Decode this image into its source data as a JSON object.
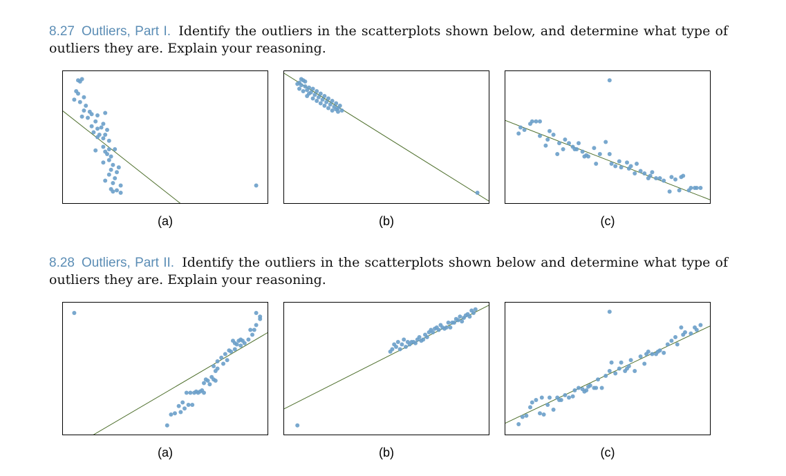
{
  "problems": [
    {
      "number": "8.27",
      "title": "Outliers, Part I.",
      "text": "Identify the outliers in the scatterplots shown below, and determine what type of outliers they are. Explain your reasoning."
    },
    {
      "number": "8.28",
      "title": "Outliers, Part II.",
      "text": "Identify the outliers in the scatterplots shown below and determine what type of outliers they are. Explain your reasoning."
    }
  ],
  "colors": {
    "point": "#6a9ec9",
    "line": "#4e6f2c",
    "accent": "#5b8db5"
  },
  "chart_data": [
    {
      "type": "scatter",
      "caption": "(a)",
      "xlim": [
        0,
        100
      ],
      "ylim": [
        0,
        100
      ],
      "points": [
        [
          5,
          97
        ],
        [
          6,
          96
        ],
        [
          7,
          98
        ],
        [
          4,
          88
        ],
        [
          5,
          86
        ],
        [
          8,
          83
        ],
        [
          3,
          81
        ],
        [
          6,
          79
        ],
        [
          9,
          76
        ],
        [
          8,
          72
        ],
        [
          11,
          71
        ],
        [
          12,
          69
        ],
        [
          15,
          68
        ],
        [
          19,
          70
        ],
        [
          7,
          67
        ],
        [
          10,
          66
        ],
        [
          14,
          63
        ],
        [
          18,
          61
        ],
        [
          12,
          59
        ],
        [
          15,
          57
        ],
        [
          17,
          58
        ],
        [
          20,
          56
        ],
        [
          13,
          54
        ],
        [
          16,
          52
        ],
        [
          19,
          52
        ],
        [
          15,
          50
        ],
        [
          18,
          49
        ],
        [
          21,
          47
        ],
        [
          18,
          42
        ],
        [
          21,
          40
        ],
        [
          14,
          39
        ],
        [
          19,
          38
        ],
        [
          24,
          40
        ],
        [
          20,
          36
        ],
        [
          22,
          34
        ],
        [
          21,
          31
        ],
        [
          18,
          29
        ],
        [
          23,
          27
        ],
        [
          26,
          25
        ],
        [
          22,
          23
        ],
        [
          25,
          21
        ],
        [
          21,
          19
        ],
        [
          24,
          16
        ],
        [
          19,
          14
        ],
        [
          23,
          12
        ],
        [
          27,
          10
        ],
        [
          22,
          7
        ],
        [
          25,
          6
        ],
        [
          23,
          5
        ],
        [
          27,
          4
        ],
        [
          97,
          10
        ]
      ],
      "line": [
        [
          0,
          68
        ],
        [
          54,
          0
        ]
      ]
    },
    {
      "type": "scatter",
      "caption": "(b)",
      "xlim": [
        0,
        100
      ],
      "ylim": [
        0,
        100
      ],
      "points": [
        [
          6,
          98
        ],
        [
          7,
          97
        ],
        [
          5,
          95
        ],
        [
          8,
          96
        ],
        [
          4,
          94
        ],
        [
          6,
          93
        ],
        [
          8,
          92
        ],
        [
          10,
          91
        ],
        [
          5,
          90
        ],
        [
          9,
          89
        ],
        [
          12,
          90
        ],
        [
          7,
          88
        ],
        [
          11,
          87
        ],
        [
          14,
          88
        ],
        [
          10,
          86
        ],
        [
          13,
          85
        ],
        [
          16,
          86
        ],
        [
          9,
          84
        ],
        [
          15,
          83
        ],
        [
          18,
          84
        ],
        [
          12,
          82
        ],
        [
          17,
          81
        ],
        [
          20,
          82
        ],
        [
          14,
          80
        ],
        [
          19,
          79
        ],
        [
          22,
          80
        ],
        [
          16,
          78
        ],
        [
          21,
          77
        ],
        [
          24,
          78
        ],
        [
          18,
          76
        ],
        [
          23,
          75
        ],
        [
          20,
          74
        ],
        [
          25,
          74
        ],
        [
          26,
          76
        ],
        [
          22,
          72
        ],
        [
          24,
          73
        ],
        [
          27,
          72
        ],
        [
          25,
          71
        ],
        [
          97,
          4
        ]
      ],
      "line": [
        [
          0,
          100
        ],
        [
          100,
          0
        ]
      ]
    },
    {
      "type": "scatter",
      "caption": "(c)",
      "xlim": [
        0,
        100
      ],
      "ylim": [
        0,
        100
      ],
      "points": [
        [
          51,
          97
        ],
        [
          4,
          53
        ],
        [
          5,
          58
        ],
        [
          7,
          56
        ],
        [
          10,
          61
        ],
        [
          11,
          63
        ],
        [
          13,
          63
        ],
        [
          15,
          51
        ],
        [
          15,
          63
        ],
        [
          18,
          43
        ],
        [
          19,
          48
        ],
        [
          20,
          55
        ],
        [
          22,
          52
        ],
        [
          24,
          36
        ],
        [
          25,
          45
        ],
        [
          28,
          48
        ],
        [
          27,
          40
        ],
        [
          30,
          45
        ],
        [
          32,
          42
        ],
        [
          33,
          40
        ],
        [
          34,
          40
        ],
        [
          35,
          45
        ],
        [
          37,
          38
        ],
        [
          38,
          34
        ],
        [
          39,
          35
        ],
        [
          40,
          34
        ],
        [
          43,
          41
        ],
        [
          44,
          28
        ],
        [
          46,
          36
        ],
        [
          49,
          46
        ],
        [
          51,
          36
        ],
        [
          52,
          28
        ],
        [
          54,
          26
        ],
        [
          56,
          30
        ],
        [
          57,
          25
        ],
        [
          60,
          29
        ],
        [
          61,
          24
        ],
        [
          62,
          26
        ],
        [
          64,
          20
        ],
        [
          65,
          28
        ],
        [
          67,
          22
        ],
        [
          69,
          20
        ],
        [
          71,
          16
        ],
        [
          72,
          18
        ],
        [
          73,
          21
        ],
        [
          75,
          16
        ],
        [
          77,
          16
        ],
        [
          79,
          14
        ],
        [
          82,
          5
        ],
        [
          83,
          17
        ],
        [
          85,
          15
        ],
        [
          87,
          6
        ],
        [
          88,
          17
        ],
        [
          89,
          18
        ],
        [
          92,
          6
        ],
        [
          93,
          8
        ],
        [
          95,
          8
        ],
        [
          96,
          8
        ],
        [
          98,
          8
        ]
      ],
      "line": [
        [
          0,
          62
        ],
        [
          100,
          0
        ]
      ]
    },
    {
      "type": "scatter",
      "caption": "(a)",
      "xlim": [
        0,
        100
      ],
      "ylim": [
        0,
        100
      ],
      "points": [
        [
          3,
          96
        ],
        [
          51,
          3
        ],
        [
          53,
          12
        ],
        [
          55,
          13
        ],
        [
          57,
          19
        ],
        [
          58,
          14
        ],
        [
          59,
          22
        ],
        [
          60,
          17
        ],
        [
          61,
          30
        ],
        [
          62,
          20
        ],
        [
          63,
          30
        ],
        [
          64,
          20
        ],
        [
          65,
          30
        ],
        [
          66,
          31
        ],
        [
          67,
          30
        ],
        [
          68,
          31
        ],
        [
          69,
          32
        ],
        [
          70,
          38
        ],
        [
          70,
          30
        ],
        [
          71,
          41
        ],
        [
          72,
          40
        ],
        [
          73,
          37
        ],
        [
          74,
          43
        ],
        [
          75,
          41
        ],
        [
          76,
          40
        ],
        [
          76,
          48
        ],
        [
          77,
          50
        ],
        [
          75,
          52
        ],
        [
          77,
          56
        ],
        [
          79,
          59
        ],
        [
          80,
          54
        ],
        [
          81,
          62
        ],
        [
          82,
          57
        ],
        [
          83,
          65
        ],
        [
          84,
          64
        ],
        [
          85,
          73
        ],
        [
          86,
          71
        ],
        [
          87,
          70
        ],
        [
          86,
          66
        ],
        [
          88,
          73
        ],
        [
          89,
          69
        ],
        [
          90,
          73
        ],
        [
          91,
          71
        ],
        [
          89,
          74
        ],
        [
          93,
          74
        ],
        [
          95,
          78
        ],
        [
          96,
          82
        ],
        [
          94,
          82
        ],
        [
          97,
          86
        ],
        [
          99,
          91
        ],
        [
          97,
          96
        ],
        [
          99,
          93
        ]
      ],
      "line": [
        [
          18,
          0
        ],
        [
          100,
          77
        ]
      ]
    },
    {
      "type": "scatter",
      "caption": "(b)",
      "xlim": [
        0,
        100
      ],
      "ylim": [
        0,
        100
      ],
      "points": [
        [
          4,
          3
        ],
        [
          52,
          64
        ],
        [
          53,
          66
        ],
        [
          54,
          70
        ],
        [
          55,
          68
        ],
        [
          56,
          72
        ],
        [
          57,
          66
        ],
        [
          58,
          70
        ],
        [
          59,
          74
        ],
        [
          60,
          68
        ],
        [
          61,
          72
        ],
        [
          62,
          70
        ],
        [
          63,
          72
        ],
        [
          64,
          72
        ],
        [
          65,
          71
        ],
        [
          66,
          74
        ],
        [
          67,
          76
        ],
        [
          68,
          73
        ],
        [
          69,
          74
        ],
        [
          70,
          78
        ],
        [
          71,
          76
        ],
        [
          72,
          80
        ],
        [
          73,
          82
        ],
        [
          74,
          80
        ],
        [
          75,
          83
        ],
        [
          76,
          84
        ],
        [
          77,
          82
        ],
        [
          78,
          86
        ],
        [
          79,
          84
        ],
        [
          80,
          83
        ],
        [
          81,
          84
        ],
        [
          82,
          88
        ],
        [
          83,
          84
        ],
        [
          84,
          88
        ],
        [
          85,
          88
        ],
        [
          86,
          91
        ],
        [
          87,
          90
        ],
        [
          88,
          93
        ],
        [
          89,
          89
        ],
        [
          90,
          92
        ],
        [
          91,
          94
        ],
        [
          92,
          95
        ],
        [
          93,
          93
        ],
        [
          95,
          96
        ],
        [
          96,
          99
        ],
        [
          94,
          98
        ]
      ],
      "line": [
        [
          0,
          19
        ],
        [
          100,
          100
        ]
      ]
    },
    {
      "type": "scatter",
      "caption": "(c)",
      "xlim": [
        0,
        100
      ],
      "ylim": [
        0,
        100
      ],
      "points": [
        [
          51,
          97
        ],
        [
          4,
          4
        ],
        [
          6,
          10
        ],
        [
          8,
          11
        ],
        [
          10,
          18
        ],
        [
          11,
          22
        ],
        [
          13,
          24
        ],
        [
          15,
          13
        ],
        [
          16,
          26
        ],
        [
          17,
          12
        ],
        [
          19,
          20
        ],
        [
          20,
          26
        ],
        [
          22,
          16
        ],
        [
          24,
          26
        ],
        [
          25,
          24
        ],
        [
          26,
          24
        ],
        [
          28,
          28
        ],
        [
          30,
          26
        ],
        [
          32,
          27
        ],
        [
          33,
          32
        ],
        [
          35,
          34
        ],
        [
          37,
          33
        ],
        [
          38,
          31
        ],
        [
          39,
          32
        ],
        [
          40,
          35
        ],
        [
          41,
          36
        ],
        [
          43,
          34
        ],
        [
          44,
          34
        ],
        [
          45,
          41
        ],
        [
          47,
          34
        ],
        [
          49,
          44
        ],
        [
          51,
          48
        ],
        [
          52,
          55
        ],
        [
          54,
          46
        ],
        [
          56,
          50
        ],
        [
          57,
          55
        ],
        [
          59,
          48
        ],
        [
          60,
          50
        ],
        [
          61,
          52
        ],
        [
          62,
          57
        ],
        [
          64,
          48
        ],
        [
          67,
          60
        ],
        [
          69,
          54
        ],
        [
          70,
          62
        ],
        [
          71,
          64
        ],
        [
          73,
          62
        ],
        [
          75,
          62
        ],
        [
          76,
          64
        ],
        [
          77,
          65
        ],
        [
          79,
          63
        ],
        [
          81,
          70
        ],
        [
          83,
          73
        ],
        [
          85,
          76
        ],
        [
          86,
          70
        ],
        [
          88,
          84
        ],
        [
          89,
          78
        ],
        [
          90,
          80
        ],
        [
          93,
          79
        ],
        [
          95,
          84
        ],
        [
          96,
          82
        ],
        [
          98,
          86
        ]
      ],
      "line": [
        [
          0,
          7
        ],
        [
          100,
          83
        ]
      ]
    }
  ]
}
